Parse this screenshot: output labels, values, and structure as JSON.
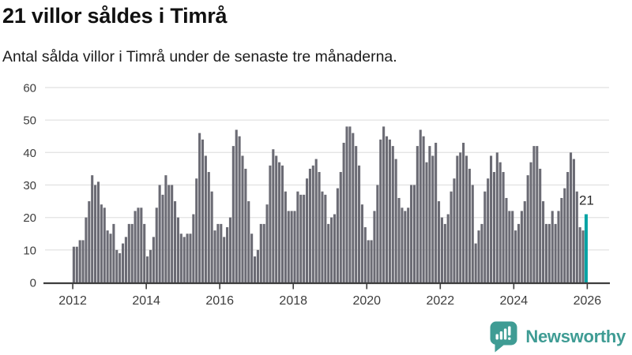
{
  "header": {
    "title": "21 villor såldes i Timrå",
    "subtitle": "Antal sålda villor i Timrå under de senaste tre månaderna."
  },
  "chart_data": {
    "type": "bar",
    "title": "21 villor såldes i Timrå",
    "subtitle": "Antal sålda villor i Timrå under de senaste tre månaderna.",
    "series": [
      {
        "name": "Antal sålda villor",
        "start_month": "2012-01",
        "values": [
          11,
          11,
          13,
          13,
          20,
          25,
          33,
          30,
          31,
          24,
          23,
          16,
          15,
          18,
          10,
          9,
          12,
          14,
          18,
          18,
          22,
          23,
          23,
          18,
          8,
          10,
          14,
          23,
          30,
          27,
          33,
          30,
          30,
          25,
          20,
          15,
          14,
          15,
          15,
          21,
          32,
          46,
          44,
          39,
          34,
          28,
          16,
          18,
          18,
          14,
          17,
          20,
          42,
          47,
          45,
          39,
          35,
          25,
          15,
          8,
          10,
          18,
          18,
          24,
          36,
          41,
          39,
          37,
          36,
          28,
          22,
          22,
          22,
          28,
          27,
          27,
          32,
          35,
          36,
          38,
          34,
          28,
          27,
          18,
          20,
          21,
          29,
          34,
          43,
          48,
          48,
          46,
          42,
          36,
          24,
          17,
          13,
          13,
          22,
          30,
          44,
          48,
          45,
          44,
          42,
          38,
          26,
          23,
          22,
          23,
          30,
          30,
          42,
          47,
          45,
          37,
          42,
          39,
          43,
          25,
          20,
          18,
          21,
          28,
          32,
          39,
          40,
          43,
          39,
          35,
          30,
          12,
          16,
          18,
          28,
          32,
          39,
          34,
          40,
          37,
          34,
          26,
          22,
          22,
          16,
          18,
          22,
          25,
          33,
          37,
          42,
          42,
          35,
          25,
          18,
          18,
          22,
          18,
          22,
          26,
          29,
          34,
          40,
          38,
          28,
          17,
          16,
          21
        ]
      }
    ],
    "highlight_last_bar": true,
    "annotation": {
      "label": "21",
      "value": 21
    },
    "x_tick_labels": [
      "2012",
      "2014",
      "2016",
      "2018",
      "2020",
      "2022",
      "2024",
      "2026"
    ],
    "yticks": [
      0,
      10,
      20,
      30,
      40,
      50,
      60
    ],
    "ylim": [
      0,
      60
    ],
    "grid": "horizontal",
    "legend": "none",
    "colors": {
      "bar": "#6b6b74",
      "highlight": "#00a3a4",
      "gridline": "#e5e5e5",
      "axis": "#3d3d3d",
      "tick_text": "#3d3d3d",
      "annotation_text": "#2b2b2b"
    }
  },
  "footer": {
    "brand": "Newsworthy",
    "brand_color": "#3f9c94"
  }
}
